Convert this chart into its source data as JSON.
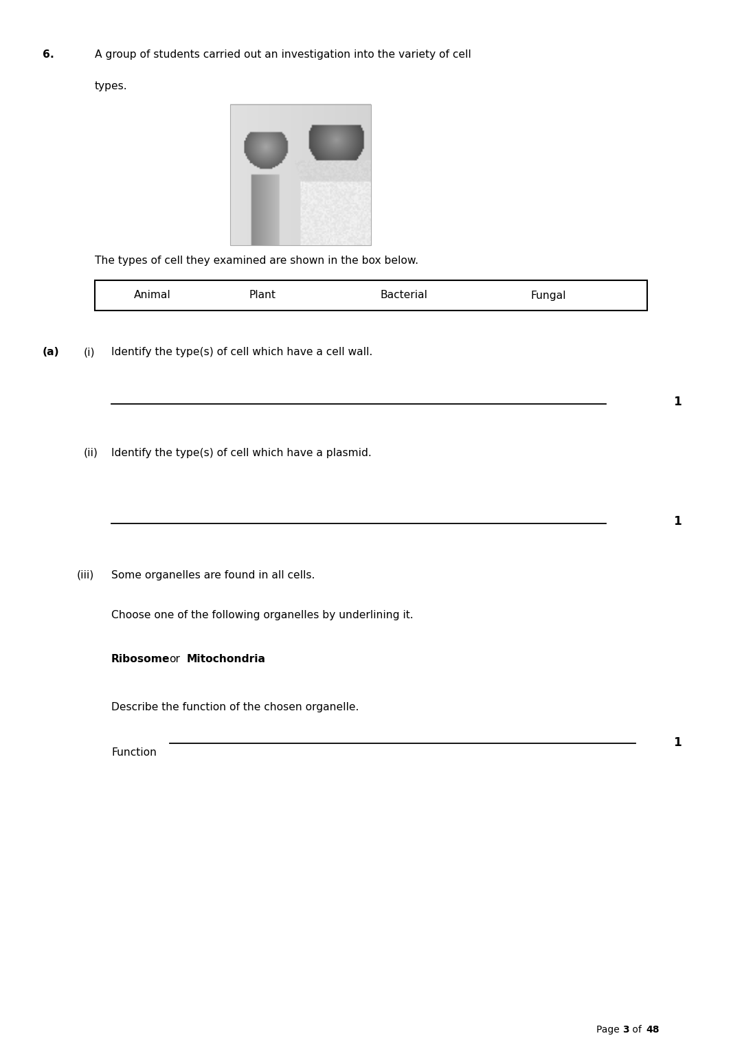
{
  "background_color": "#ffffff",
  "page_width": 10.8,
  "page_height": 15.27,
  "dpi": 100,
  "question_number": "6.",
  "question_text_line1": "A group of students carried out an investigation into the variety of cell",
  "question_text_line2": "types.",
  "intro_text": "The types of cell they examined are shown in the box below.",
  "table_cells": [
    "Animal",
    "Plant",
    "Bacterial",
    "Fungal"
  ],
  "part_a_label": "(a)",
  "part_i_label": "(i)",
  "part_i_text": "Identify the type(s) of cell which have a cell wall.",
  "part_ii_label": "(ii)",
  "part_ii_text": "Identify the type(s) of cell which have a plasmid.",
  "part_iii_label": "(iii)",
  "part_iii_text": "Some organelles are found in all cells.",
  "choose_text": "Choose one of the following organelles by underlining it.",
  "organelle1": "Ribosome",
  "or_text": "or",
  "organelle2": "Mitochondria",
  "describe_text": "Describe the function of the chosen organelle.",
  "function_label": "Function",
  "marks_1": "1",
  "page_text1": "Page ",
  "page_num": "3",
  "page_text2": " of ",
  "page_total": "48"
}
